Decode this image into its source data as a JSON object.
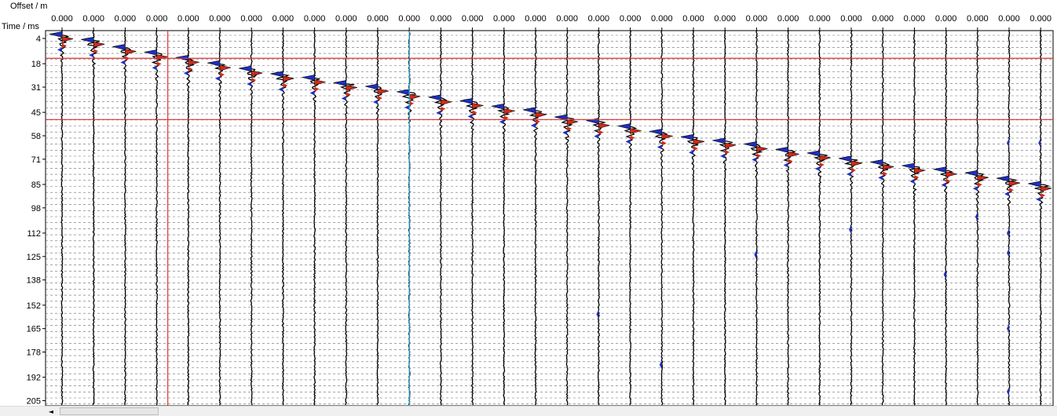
{
  "chart_data": {
    "type": "seismic-wiggle",
    "xlabel": "Offset / m",
    "ylabel": "Time / ms",
    "trace_offset_label": "0.000",
    "trace_count": 32,
    "yticks": [
      4,
      18,
      31,
      45,
      58,
      71,
      85,
      98,
      112,
      125,
      138,
      152,
      165,
      178,
      192,
      205
    ],
    "ylim": [
      0,
      210
    ],
    "grid": true,
    "grid_style": "dashed",
    "first_break_ms": [
      2,
      5,
      9,
      12,
      15,
      18,
      21,
      24,
      26,
      29,
      31,
      34,
      37,
      39,
      42,
      44,
      48,
      50,
      53,
      56,
      59,
      61,
      63,
      66,
      68,
      71,
      73,
      75,
      77,
      79,
      82,
      85
    ],
    "markers": {
      "vertical_red_trace_index": 3.35,
      "vertical_cyan_trace_index": 11,
      "horizontal_red_ms": [
        15,
        49
      ]
    },
    "colors": {
      "positive_fill": "#d42a1a",
      "negative_fill": "#1f2fc0",
      "trace": "#000000",
      "grid": "#6a6a6a",
      "marker_red": "#e03030",
      "marker_cyan": "#2ab0d0"
    }
  },
  "scrollbar": {
    "left_arrow": "◄"
  }
}
